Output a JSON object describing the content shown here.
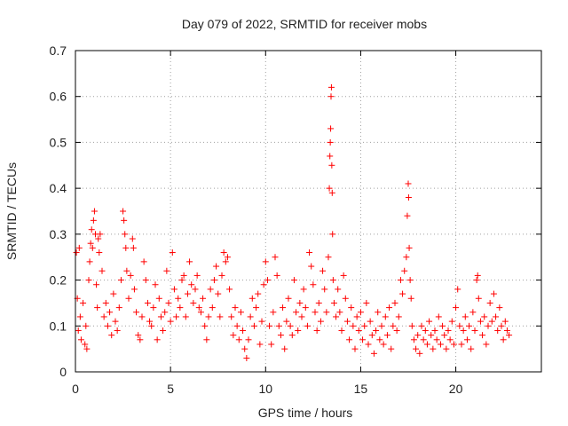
{
  "colors": {
    "marker": "#ff0000",
    "grid": "#a0a0a0",
    "frame": "#000000"
  },
  "chart_data": {
    "type": "scatter",
    "title": "Day 079 of 2022, SRMTID for receiver mobs",
    "xlabel": "GPS time / hours",
    "ylabel": "SRMTID / TECUs",
    "xlim": [
      0,
      24.5
    ],
    "ylim": [
      0,
      0.7
    ],
    "xticks": [
      0,
      5,
      10,
      15,
      20
    ],
    "yticks": [
      0,
      0.1,
      0.2,
      0.3,
      0.4,
      0.5,
      0.6,
      0.7
    ],
    "ytick_labels": [
      "0",
      "0.1",
      "0.2",
      "0.3",
      "0.4",
      "0.5",
      "0.6",
      "0.7"
    ],
    "grid": true,
    "marker": "+",
    "x_range_of_samples": [
      0,
      22.8
    ],
    "series": [
      {
        "name": "SRMTID",
        "points": [
          [
            0.05,
            0.26
          ],
          [
            0.1,
            0.16
          ],
          [
            0.15,
            0.09
          ],
          [
            0.2,
            0.27
          ],
          [
            0.25,
            0.12
          ],
          [
            0.3,
            0.07
          ],
          [
            0.4,
            0.15
          ],
          [
            0.5,
            0.06
          ],
          [
            0.55,
            0.1
          ],
          [
            0.6,
            0.05
          ],
          [
            0.7,
            0.2
          ],
          [
            0.75,
            0.24
          ],
          [
            0.8,
            0.28
          ],
          [
            0.85,
            0.31
          ],
          [
            0.9,
            0.27
          ],
          [
            0.95,
            0.33
          ],
          [
            1.0,
            0.35
          ],
          [
            1.05,
            0.3
          ],
          [
            1.1,
            0.19
          ],
          [
            1.15,
            0.14
          ],
          [
            1.2,
            0.29
          ],
          [
            1.25,
            0.26
          ],
          [
            1.3,
            0.3
          ],
          [
            1.4,
            0.22
          ],
          [
            1.5,
            0.12
          ],
          [
            1.6,
            0.15
          ],
          [
            1.7,
            0.1
          ],
          [
            1.8,
            0.13
          ],
          [
            1.9,
            0.08
          ],
          [
            2.0,
            0.17
          ],
          [
            2.1,
            0.11
          ],
          [
            2.2,
            0.09
          ],
          [
            2.3,
            0.14
          ],
          [
            2.4,
            0.2
          ],
          [
            2.5,
            0.35
          ],
          [
            2.55,
            0.33
          ],
          [
            2.6,
            0.3
          ],
          [
            2.65,
            0.27
          ],
          [
            2.7,
            0.22
          ],
          [
            2.8,
            0.16
          ],
          [
            2.9,
            0.21
          ],
          [
            3.0,
            0.29
          ],
          [
            3.05,
            0.27
          ],
          [
            3.1,
            0.18
          ],
          [
            3.2,
            0.13
          ],
          [
            3.3,
            0.08
          ],
          [
            3.4,
            0.07
          ],
          [
            3.5,
            0.12
          ],
          [
            3.6,
            0.24
          ],
          [
            3.7,
            0.2
          ],
          [
            3.8,
            0.15
          ],
          [
            3.9,
            0.11
          ],
          [
            4.0,
            0.1
          ],
          [
            4.1,
            0.14
          ],
          [
            4.2,
            0.19
          ],
          [
            4.3,
            0.07
          ],
          [
            4.4,
            0.16
          ],
          [
            4.5,
            0.12
          ],
          [
            4.6,
            0.09
          ],
          [
            4.7,
            0.13
          ],
          [
            4.8,
            0.22
          ],
          [
            4.9,
            0.15
          ],
          [
            5.0,
            0.11
          ],
          [
            5.1,
            0.26
          ],
          [
            5.2,
            0.18
          ],
          [
            5.3,
            0.12
          ],
          [
            5.4,
            0.16
          ],
          [
            5.5,
            0.14
          ],
          [
            5.6,
            0.2
          ],
          [
            5.7,
            0.21
          ],
          [
            5.8,
            0.12
          ],
          [
            5.9,
            0.17
          ],
          [
            6.0,
            0.24
          ],
          [
            6.1,
            0.19
          ],
          [
            6.2,
            0.15
          ],
          [
            6.3,
            0.18
          ],
          [
            6.4,
            0.21
          ],
          [
            6.5,
            0.14
          ],
          [
            6.6,
            0.13
          ],
          [
            6.7,
            0.16
          ],
          [
            6.8,
            0.1
          ],
          [
            6.9,
            0.07
          ],
          [
            7.0,
            0.12
          ],
          [
            7.1,
            0.18
          ],
          [
            7.2,
            0.14
          ],
          [
            7.3,
            0.2
          ],
          [
            7.4,
            0.23
          ],
          [
            7.5,
            0.17
          ],
          [
            7.6,
            0.12
          ],
          [
            7.7,
            0.21
          ],
          [
            7.8,
            0.26
          ],
          [
            7.9,
            0.24
          ],
          [
            8.0,
            0.25
          ],
          [
            8.1,
            0.18
          ],
          [
            8.2,
            0.12
          ],
          [
            8.3,
            0.08
          ],
          [
            8.4,
            0.14
          ],
          [
            8.5,
            0.1
          ],
          [
            8.6,
            0.07
          ],
          [
            8.7,
            0.13
          ],
          [
            8.8,
            0.09
          ],
          [
            8.9,
            0.05
          ],
          [
            9.0,
            0.03
          ],
          [
            9.1,
            0.07
          ],
          [
            9.2,
            0.12
          ],
          [
            9.3,
            0.16
          ],
          [
            9.4,
            0.1
          ],
          [
            9.5,
            0.14
          ],
          [
            9.6,
            0.17
          ],
          [
            9.7,
            0.06
          ],
          [
            9.8,
            0.11
          ],
          [
            9.9,
            0.19
          ],
          [
            10.0,
            0.24
          ],
          [
            10.1,
            0.2
          ],
          [
            10.2,
            0.1
          ],
          [
            10.3,
            0.06
          ],
          [
            10.4,
            0.13
          ],
          [
            10.5,
            0.25
          ],
          [
            10.6,
            0.21
          ],
          [
            10.7,
            0.1
          ],
          [
            10.8,
            0.08
          ],
          [
            10.9,
            0.14
          ],
          [
            11.0,
            0.05
          ],
          [
            11.1,
            0.11
          ],
          [
            11.2,
            0.16
          ],
          [
            11.3,
            0.1
          ],
          [
            11.4,
            0.08
          ],
          [
            11.5,
            0.2
          ],
          [
            11.6,
            0.13
          ],
          [
            11.7,
            0.09
          ],
          [
            11.8,
            0.15
          ],
          [
            11.9,
            0.12
          ],
          [
            12.0,
            0.18
          ],
          [
            12.1,
            0.14
          ],
          [
            12.2,
            0.1
          ],
          [
            12.3,
            0.26
          ],
          [
            12.4,
            0.23
          ],
          [
            12.5,
            0.19
          ],
          [
            12.6,
            0.13
          ],
          [
            12.7,
            0.09
          ],
          [
            12.8,
            0.15
          ],
          [
            12.9,
            0.11
          ],
          [
            13.0,
            0.22
          ],
          [
            13.1,
            0.18
          ],
          [
            13.2,
            0.13
          ],
          [
            13.3,
            0.25
          ],
          [
            13.35,
            0.4
          ],
          [
            13.38,
            0.47
          ],
          [
            13.4,
            0.5
          ],
          [
            13.42,
            0.53
          ],
          [
            13.44,
            0.6
          ],
          [
            13.46,
            0.62
          ],
          [
            13.48,
            0.45
          ],
          [
            13.5,
            0.39
          ],
          [
            13.52,
            0.3
          ],
          [
            13.55,
            0.2
          ],
          [
            13.6,
            0.15
          ],
          [
            13.7,
            0.12
          ],
          [
            13.8,
            0.18
          ],
          [
            13.9,
            0.13
          ],
          [
            14.0,
            0.09
          ],
          [
            14.1,
            0.21
          ],
          [
            14.2,
            0.16
          ],
          [
            14.3,
            0.11
          ],
          [
            14.4,
            0.07
          ],
          [
            14.5,
            0.14
          ],
          [
            14.6,
            0.1
          ],
          [
            14.7,
            0.05
          ],
          [
            14.8,
            0.12
          ],
          [
            14.9,
            0.09
          ],
          [
            15.0,
            0.13
          ],
          [
            15.1,
            0.07
          ],
          [
            15.2,
            0.1
          ],
          [
            15.3,
            0.15
          ],
          [
            15.4,
            0.06
          ],
          [
            15.5,
            0.11
          ],
          [
            15.6,
            0.08
          ],
          [
            15.7,
            0.04
          ],
          [
            15.8,
            0.09
          ],
          [
            15.9,
            0.13
          ],
          [
            16.0,
            0.07
          ],
          [
            16.1,
            0.1
          ],
          [
            16.2,
            0.06
          ],
          [
            16.3,
            0.12
          ],
          [
            16.4,
            0.08
          ],
          [
            16.5,
            0.14
          ],
          [
            16.6,
            0.05
          ],
          [
            16.7,
            0.1
          ],
          [
            16.8,
            0.15
          ],
          [
            16.9,
            0.09
          ],
          [
            17.0,
            0.12
          ],
          [
            17.1,
            0.2
          ],
          [
            17.2,
            0.17
          ],
          [
            17.3,
            0.22
          ],
          [
            17.4,
            0.25
          ],
          [
            17.45,
            0.34
          ],
          [
            17.5,
            0.41
          ],
          [
            17.52,
            0.38
          ],
          [
            17.55,
            0.27
          ],
          [
            17.6,
            0.2
          ],
          [
            17.65,
            0.16
          ],
          [
            17.7,
            0.1
          ],
          [
            17.8,
            0.07
          ],
          [
            17.9,
            0.05
          ],
          [
            18.0,
            0.08
          ],
          [
            18.1,
            0.04
          ],
          [
            18.2,
            0.1
          ],
          [
            18.3,
            0.07
          ],
          [
            18.4,
            0.09
          ],
          [
            18.5,
            0.06
          ],
          [
            18.6,
            0.11
          ],
          [
            18.7,
            0.08
          ],
          [
            18.8,
            0.05
          ],
          [
            18.9,
            0.09
          ],
          [
            19.0,
            0.07
          ],
          [
            19.1,
            0.12
          ],
          [
            19.2,
            0.06
          ],
          [
            19.3,
            0.1
          ],
          [
            19.4,
            0.08
          ],
          [
            19.5,
            0.05
          ],
          [
            19.6,
            0.09
          ],
          [
            19.7,
            0.07
          ],
          [
            19.8,
            0.11
          ],
          [
            19.9,
            0.06
          ],
          [
            20.0,
            0.14
          ],
          [
            20.1,
            0.18
          ],
          [
            20.2,
            0.1
          ],
          [
            20.3,
            0.06
          ],
          [
            20.4,
            0.09
          ],
          [
            20.5,
            0.12
          ],
          [
            20.6,
            0.07
          ],
          [
            20.7,
            0.1
          ],
          [
            20.8,
            0.05
          ],
          [
            20.9,
            0.13
          ],
          [
            21.0,
            0.09
          ],
          [
            21.1,
            0.2
          ],
          [
            21.15,
            0.21
          ],
          [
            21.2,
            0.16
          ],
          [
            21.3,
            0.11
          ],
          [
            21.4,
            0.08
          ],
          [
            21.5,
            0.12
          ],
          [
            21.6,
            0.06
          ],
          [
            21.7,
            0.1
          ],
          [
            21.8,
            0.15
          ],
          [
            21.9,
            0.11
          ],
          [
            22.0,
            0.17
          ],
          [
            22.1,
            0.12
          ],
          [
            22.2,
            0.09
          ],
          [
            22.3,
            0.14
          ],
          [
            22.4,
            0.1
          ],
          [
            22.5,
            0.07
          ],
          [
            22.6,
            0.11
          ],
          [
            22.7,
            0.09
          ],
          [
            22.8,
            0.08
          ]
        ]
      }
    ]
  }
}
